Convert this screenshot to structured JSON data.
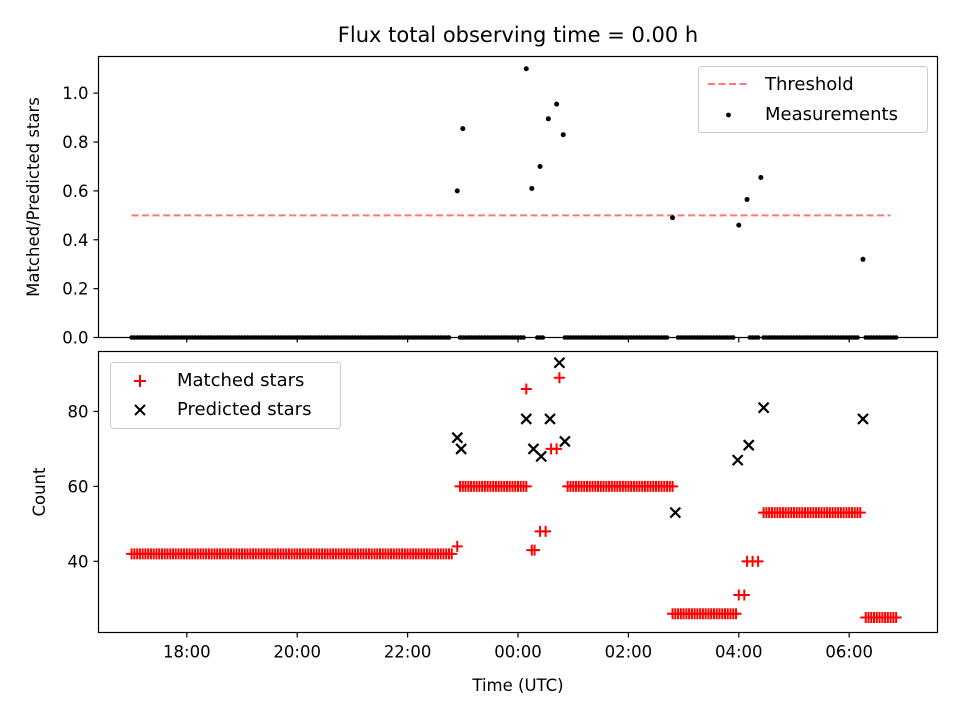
{
  "chart_data": [
    {
      "type": "scatter",
      "title": "Flux total observing time = 0.00 h",
      "ylabel": "Matched/Predicted stars",
      "xlabel": "",
      "ylim": [
        0,
        1.15
      ],
      "yticks": [
        "0.0",
        "0.2",
        "0.4",
        "0.6",
        "0.8",
        "1.0"
      ],
      "xlim_hours": [
        16.4,
        31.6
      ],
      "legend": {
        "position": "upper right",
        "entries": [
          "Threshold",
          "Measurements"
        ]
      },
      "threshold": {
        "name": "Threshold",
        "value": 0.5,
        "x_start": 17.0,
        "x_end": 30.75,
        "color": "#ff7777"
      },
      "measurements": {
        "name": "Measurements",
        "color": "#000000",
        "points": [
          [
            22.9,
            0.6
          ],
          [
            23.0,
            0.855
          ],
          [
            24.15,
            1.1
          ],
          [
            24.25,
            0.61
          ],
          [
            24.4,
            0.7
          ],
          [
            24.55,
            0.895
          ],
          [
            24.7,
            0.955
          ],
          [
            24.82,
            0.83
          ],
          [
            26.8,
            0.49
          ],
          [
            28.0,
            0.46
          ],
          [
            28.15,
            0.565
          ],
          [
            28.4,
            0.655
          ],
          [
            30.25,
            0.32
          ]
        ],
        "zero_segments": [
          [
            17.0,
            22.75
          ],
          [
            22.95,
            24.1
          ],
          [
            24.35,
            24.45
          ],
          [
            24.85,
            26.7
          ],
          [
            26.9,
            27.9
          ],
          [
            28.2,
            28.35
          ],
          [
            28.45,
            30.15
          ],
          [
            30.3,
            30.85
          ]
        ]
      }
    },
    {
      "type": "scatter",
      "title": "",
      "ylabel": "Count",
      "xlabel": "Time (UTC)",
      "ylim": [
        21,
        96
      ],
      "yticks": [
        "40",
        "60",
        "80"
      ],
      "xlim_hours": [
        16.4,
        31.6
      ],
      "xticks": [
        "18:00",
        "20:00",
        "22:00",
        "00:00",
        "02:00",
        "04:00",
        "06:00"
      ],
      "legend": {
        "position": "upper left",
        "entries": [
          "Matched stars",
          "Predicted stars"
        ]
      },
      "matched": {
        "name": "Matched stars",
        "color": "#ff0000",
        "runs": [
          [
            17.0,
            22.8,
            42
          ],
          [
            22.95,
            24.15,
            60
          ],
          [
            24.9,
            26.8,
            60
          ],
          [
            26.8,
            27.95,
            26
          ],
          [
            28.45,
            30.2,
            53
          ],
          [
            30.3,
            30.85,
            25
          ]
        ],
        "points": [
          [
            22.9,
            44
          ],
          [
            24.15,
            86
          ],
          [
            24.25,
            43
          ],
          [
            24.3,
            43
          ],
          [
            24.4,
            48
          ],
          [
            24.5,
            48
          ],
          [
            24.6,
            70
          ],
          [
            24.7,
            70
          ],
          [
            24.75,
            89
          ],
          [
            28.0,
            31
          ],
          [
            28.1,
            31
          ],
          [
            28.15,
            40
          ],
          [
            28.25,
            40
          ],
          [
            28.35,
            40
          ]
        ]
      },
      "predicted": {
        "name": "Predicted stars",
        "color": "#000000",
        "points": [
          [
            22.9,
            73
          ],
          [
            22.97,
            70
          ],
          [
            24.15,
            78
          ],
          [
            24.28,
            70
          ],
          [
            24.42,
            68
          ],
          [
            24.58,
            78
          ],
          [
            24.75,
            93
          ],
          [
            24.85,
            72
          ],
          [
            26.85,
            53
          ],
          [
            27.98,
            67
          ],
          [
            28.18,
            71
          ],
          [
            28.45,
            81
          ],
          [
            30.25,
            78
          ]
        ]
      }
    }
  ]
}
